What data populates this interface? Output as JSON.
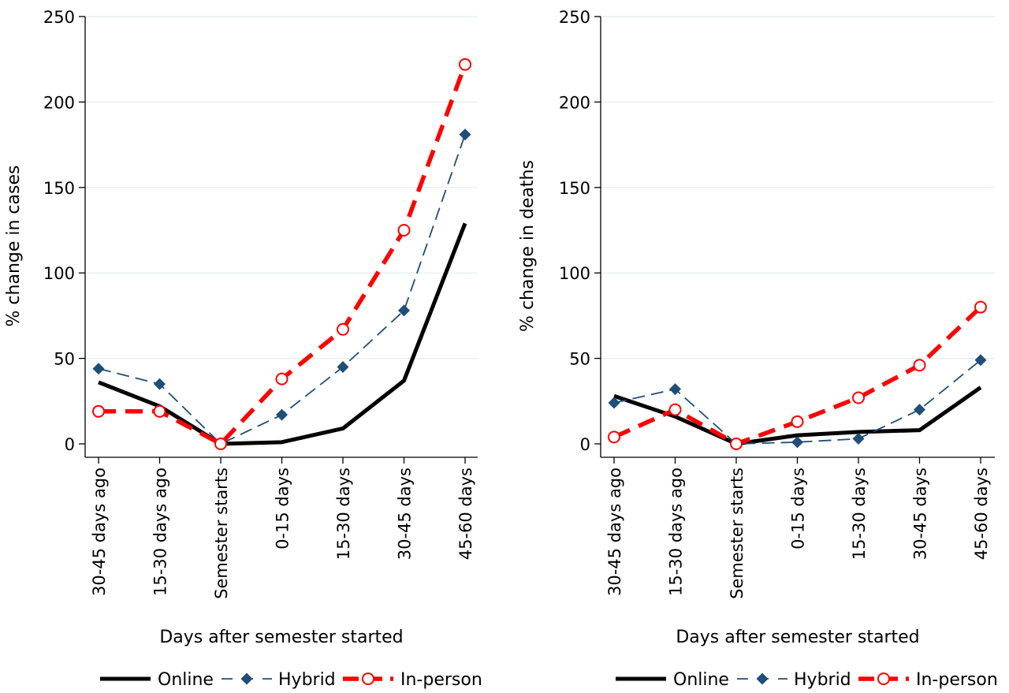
{
  "chart_data": [
    {
      "type": "line",
      "ylabel": "% change in cases",
      "xlabel": "Days after semester started",
      "categories": [
        "30-45 days ago",
        "15-30 days ago",
        "Semester starts",
        "0-15 days",
        "15-30 days",
        "30-45 days",
        "45-60 days"
      ],
      "ylim": [
        0,
        250
      ],
      "yticks": [
        0,
        50,
        100,
        150,
        200,
        250
      ],
      "grid": true,
      "legend_position": "bottom",
      "series": [
        {
          "name": "Online",
          "values": [
            36,
            22,
            0,
            1,
            9,
            37,
            129
          ],
          "color": "#000000",
          "style": "solid",
          "marker": "none"
        },
        {
          "name": "Hybrid",
          "values": [
            44,
            35,
            0,
            17,
            45,
            78,
            181
          ],
          "color": "#1f4e79",
          "style": "longdash",
          "marker": "diamond"
        },
        {
          "name": "In-person",
          "values": [
            19,
            19,
            0,
            38,
            67,
            125,
            222
          ],
          "color": "#ff0000",
          "style": "dash",
          "marker": "hollow-circle"
        }
      ]
    },
    {
      "type": "line",
      "ylabel": "% change in deaths",
      "xlabel": "Days after semester started",
      "categories": [
        "30-45 days ago",
        "15-30 days ago",
        "Semester starts",
        "0-15 days",
        "15-30 days",
        "30-45 days",
        "45-60 days"
      ],
      "ylim": [
        0,
        250
      ],
      "yticks": [
        0,
        50,
        100,
        150,
        200,
        250
      ],
      "grid": true,
      "legend_position": "bottom",
      "series": [
        {
          "name": "Online",
          "values": [
            28,
            16,
            0,
            5,
            7,
            8,
            33
          ],
          "color": "#000000",
          "style": "solid",
          "marker": "none"
        },
        {
          "name": "Hybrid",
          "values": [
            24,
            32,
            0,
            1,
            3,
            20,
            49
          ],
          "color": "#1f4e79",
          "style": "longdash",
          "marker": "diamond"
        },
        {
          "name": "In-person",
          "values": [
            4,
            20,
            0,
            13,
            27,
            46,
            80
          ],
          "color": "#ff0000",
          "style": "dash",
          "marker": "hollow-circle"
        }
      ]
    }
  ]
}
